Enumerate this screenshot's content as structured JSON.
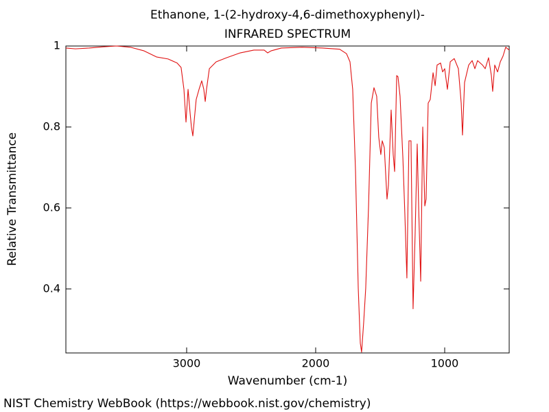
{
  "chart_data": {
    "type": "line",
    "title": "Ethanone, 1-(2-hydroxy-4,6-dimethoxyphenyl)-",
    "subtitle": "INFRARED SPECTRUM",
    "x_label": "Wavenumber (cm-1)",
    "y_label": "Relative Transmittance",
    "footer": "NIST Chemistry WebBook (https://webbook.nist.gov/chemistry)",
    "x": [
      3936,
      3862,
      3755,
      3649,
      3543,
      3436,
      3330,
      3234,
      3144,
      3074,
      3043,
      3021,
      3005,
      2989,
      2973,
      2963,
      2952,
      2941,
      2926,
      2904,
      2883,
      2867,
      2856,
      2846,
      2824,
      2771,
      2691,
      2585,
      2479,
      2399,
      2372,
      2346,
      2266,
      2106,
      1947,
      1814,
      1761,
      1734,
      1713,
      1691,
      1670,
      1654,
      1644,
      1628,
      1612,
      1590,
      1569,
      1548,
      1527,
      1511,
      1495,
      1484,
      1468,
      1447,
      1436,
      1415,
      1399,
      1388,
      1372,
      1362,
      1346,
      1324,
      1309,
      1293,
      1277,
      1261,
      1245,
      1229,
      1213,
      1202,
      1186,
      1170,
      1154,
      1144,
      1128,
      1112,
      1090,
      1074,
      1059,
      1032,
      1016,
      1000,
      979,
      957,
      926,
      894,
      872,
      862,
      846,
      814,
      787,
      766,
      745,
      707,
      686,
      660,
      638,
      628,
      612,
      590,
      569,
      548,
      527,
      500
    ],
    "series": [
      {
        "name": "Spectrum",
        "color": "#e01010",
        "values": [
          0.995,
          0.993,
          0.995,
          0.998,
          1.0,
          0.997,
          0.988,
          0.973,
          0.968,
          0.958,
          0.947,
          0.893,
          0.812,
          0.893,
          0.834,
          0.8,
          0.778,
          0.817,
          0.868,
          0.893,
          0.914,
          0.893,
          0.863,
          0.893,
          0.944,
          0.961,
          0.971,
          0.983,
          0.99,
          0.99,
          0.983,
          0.988,
          0.995,
          0.997,
          0.995,
          0.992,
          0.981,
          0.961,
          0.893,
          0.69,
          0.402,
          0.266,
          0.244,
          0.317,
          0.402,
          0.605,
          0.859,
          0.897,
          0.876,
          0.775,
          0.732,
          0.766,
          0.749,
          0.622,
          0.656,
          0.842,
          0.732,
          0.69,
          0.927,
          0.924,
          0.876,
          0.724,
          0.588,
          0.427,
          0.766,
          0.766,
          0.351,
          0.537,
          0.758,
          0.605,
          0.419,
          0.8,
          0.605,
          0.622,
          0.859,
          0.868,
          0.934,
          0.902,
          0.953,
          0.958,
          0.936,
          0.944,
          0.893,
          0.961,
          0.969,
          0.944,
          0.859,
          0.78,
          0.91,
          0.953,
          0.964,
          0.944,
          0.964,
          0.953,
          0.944,
          0.971,
          0.927,
          0.888,
          0.953,
          0.936,
          0.961,
          0.975,
          0.997,
          0.99
        ]
      }
    ],
    "xlim": [
      3936,
      500
    ],
    "ylim": [
      0.242,
      1
    ],
    "xticks": [
      3000,
      2000,
      1000
    ],
    "yticks": [
      0.4,
      0.6,
      0.8,
      1
    ]
  }
}
